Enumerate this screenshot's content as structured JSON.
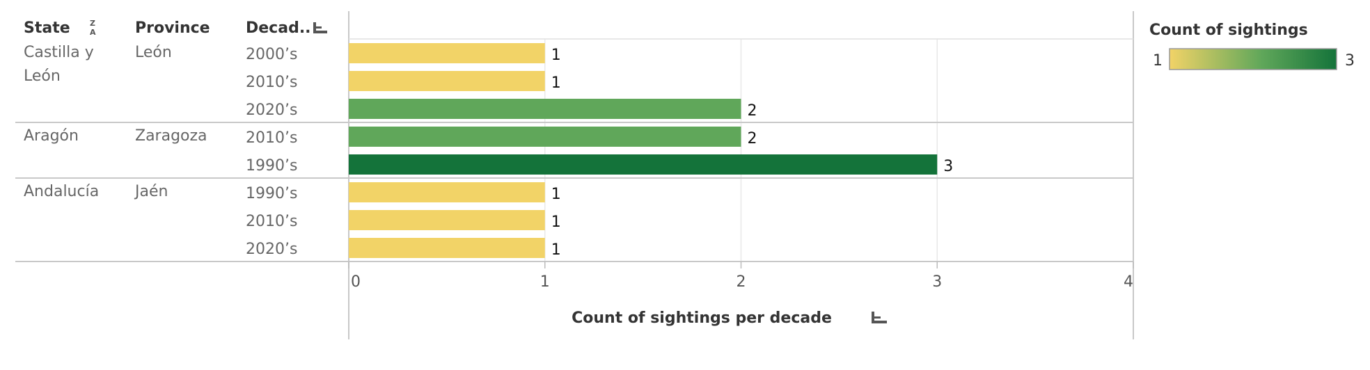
{
  "headers": {
    "state": "State",
    "province": "Province",
    "decade": "Decad.."
  },
  "chart_data": {
    "type": "bar",
    "orientation": "horizontal",
    "xlabel": "Count of sightings per decade",
    "xlim": [
      0,
      4
    ],
    "xticks": [
      0,
      1,
      2,
      3,
      4
    ],
    "grid": true,
    "groups": [
      {
        "state": "Castilla y León",
        "province": "León",
        "rows": [
          {
            "decade": "2000’s",
            "value": 1
          },
          {
            "decade": "2010’s",
            "value": 1
          },
          {
            "decade": "2020’s",
            "value": 2
          }
        ]
      },
      {
        "state": "Aragón",
        "province": "Zaragoza",
        "rows": [
          {
            "decade": "2010’s",
            "value": 2
          },
          {
            "decade": "1990’s",
            "value": 3
          }
        ]
      },
      {
        "state": "Andalucía",
        "province": "Jaén",
        "rows": [
          {
            "decade": "1990’s",
            "value": 1
          },
          {
            "decade": "2010’s",
            "value": 1
          },
          {
            "decade": "2020’s",
            "value": 1
          }
        ]
      }
    ],
    "legend": {
      "title": "Count of sightings",
      "min": 1,
      "max": 3,
      "placement": "top-right"
    },
    "colors": {
      "low": "#f2d367",
      "mid": "#60a75a",
      "high": "#14733a"
    }
  }
}
